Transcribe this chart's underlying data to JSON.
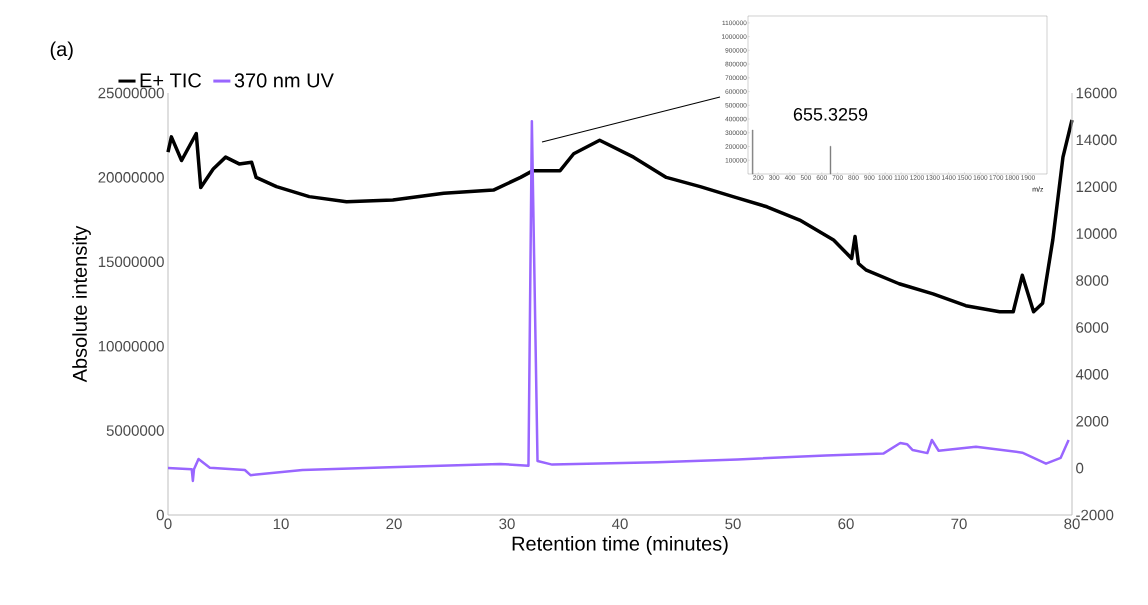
{
  "chart_data": [
    {
      "type": "line",
      "xlabel": "Retention time (minutes)",
      "ylabel": "Absolute intensity",
      "annotations": [
        "(a)"
      ],
      "legend": "top left",
      "marker": "none",
      "xlim": [
        0,
        80
      ],
      "xticks": [
        0,
        10,
        20,
        30,
        40,
        50,
        60,
        70,
        80
      ],
      "ylim": [
        0,
        25000000
      ],
      "yticks": [
        0,
        5000000,
        10000000,
        15000000,
        20000000,
        25000000
      ],
      "y2lim": [
        -2000,
        16000
      ],
      "y2ticks": [
        -2000,
        0,
        2000,
        4000,
        6000,
        8000,
        10000,
        12000,
        14000,
        16000
      ],
      "series": [
        {
          "name": "E+ TIC",
          "color": "#000000",
          "x": [
            0,
            0.3,
            1.2,
            2.5,
            2.9,
            4.0,
            5.1,
            6.3,
            7.4,
            7.8,
            9.6,
            12.5,
            15.8,
            19.9,
            24.4,
            28.8,
            31.2,
            32.3,
            34.7,
            35.9,
            38.2,
            41.2,
            44.1,
            47.1,
            50.0,
            53.0,
            55.9,
            58.9,
            60.5,
            60.8,
            61.1,
            61.8,
            64.7,
            67.7,
            70.6,
            73.6,
            74.8,
            75.6,
            76.6,
            77.4,
            78.3,
            79.2,
            80
          ],
          "values": [
            21500000,
            22400000,
            21000000,
            22600000,
            19400000,
            20500000,
            21200000,
            20800000,
            20900000,
            20000000,
            19450000,
            18860000,
            18560000,
            18660000,
            19060000,
            19250000,
            20000000,
            20400000,
            20400000,
            21400000,
            22200000,
            21200000,
            20000000,
            19450000,
            18860000,
            18260000,
            17470000,
            16290000,
            15200000,
            16500000,
            14900000,
            14500000,
            13700000,
            13100000,
            12400000,
            12040000,
            12040000,
            14200000,
            12040000,
            12550000,
            16300000,
            21200000,
            23400000
          ]
        },
        {
          "name": "370 nm UV",
          "color": "#9966ff",
          "axis": "y2",
          "x": [
            0,
            2.1,
            2.2,
            2.3,
            2.7,
            3.7,
            6.8,
            7.3,
            11.9,
            19.6,
            29.4,
            31.9,
            32.2,
            32.7,
            34.0,
            43.3,
            50.4,
            58.2,
            63.3,
            64.8,
            65.4,
            65.9,
            67.2,
            67.6,
            68.2,
            71.5,
            75.6,
            77.7,
            79.0,
            79.7
          ],
          "values": [
            0,
            -50,
            -550,
            -50,
            390,
            20,
            -80,
            -300,
            -80,
            40,
            180,
            100,
            14800,
            300,
            150,
            250,
            370,
            540,
            620,
            1070,
            1020,
            770,
            640,
            1200,
            740,
            910,
            660,
            190,
            440,
            1200
          ]
        }
      ]
    },
    {
      "type": "bar",
      "xlabel": "m/z",
      "color": "#808080",
      "x": [
        164,
        655
      ],
      "values": [
        320000,
        202000
      ],
      "annotations": [
        {
          "text": "655.3259",
          "x": 655,
          "y": 202000
        }
      ],
      "xlim": [
        135,
        2020
      ],
      "xticks": [
        200,
        300,
        400,
        500,
        600,
        700,
        800,
        900,
        1000,
        1100,
        1200,
        1300,
        1400,
        1500,
        1600,
        1700,
        1800,
        1900
      ],
      "ylim": [
        0,
        1150000
      ],
      "yticks": [
        100000,
        200000,
        300000,
        400000,
        500000,
        600000,
        700000,
        800000,
        900000,
        1000000,
        1100000
      ]
    }
  ]
}
